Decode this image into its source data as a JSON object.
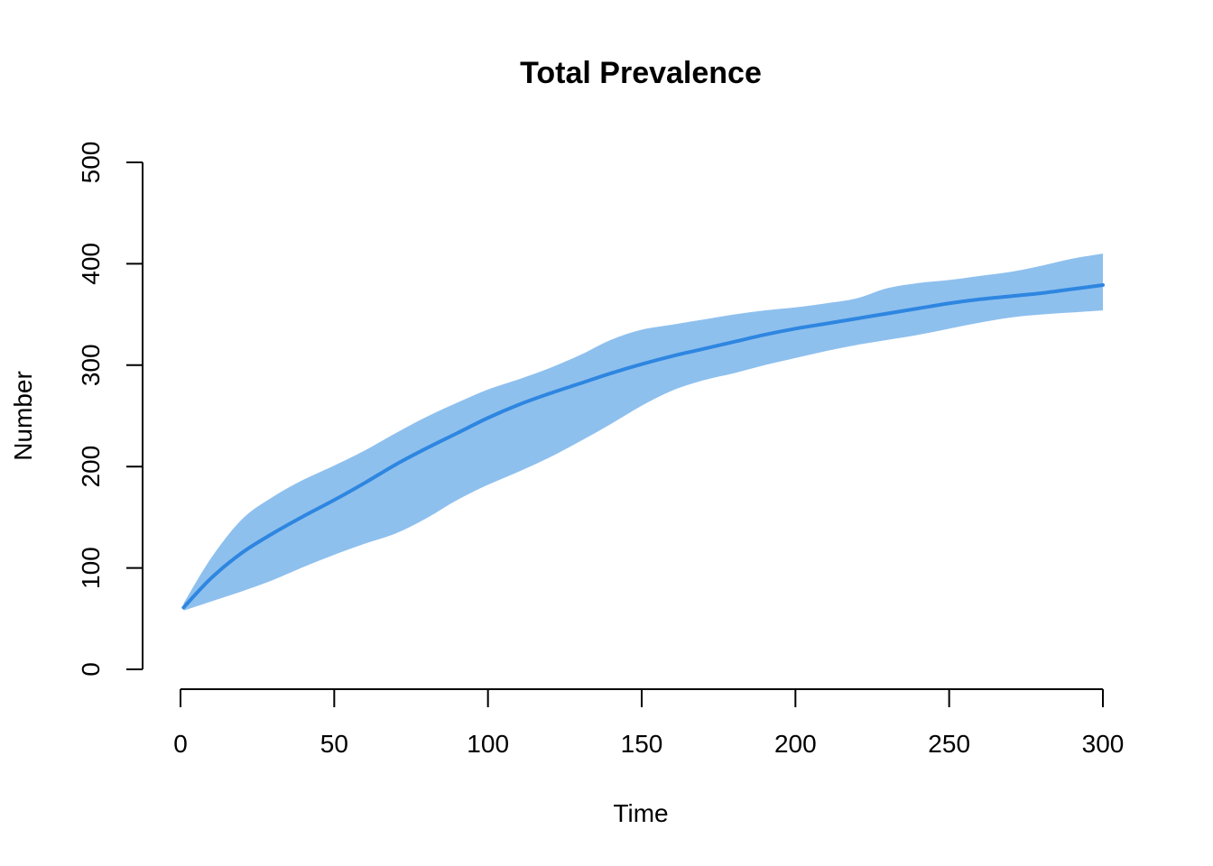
{
  "chart_data": {
    "type": "area",
    "title": "Total Prevalence",
    "xlabel": "Time",
    "ylabel": "Number",
    "xlim": [
      1,
      300
    ],
    "ylim": [
      0,
      500
    ],
    "x_ticks": [
      0,
      50,
      100,
      150,
      200,
      250,
      300
    ],
    "y_ticks": [
      0,
      100,
      200,
      300,
      400,
      500
    ],
    "grid": false,
    "colors": {
      "line": "#2E86E0",
      "band": "#8EC0EE"
    },
    "x": [
      1,
      10,
      20,
      30,
      40,
      50,
      60,
      70,
      80,
      90,
      100,
      110,
      120,
      130,
      140,
      150,
      160,
      170,
      180,
      190,
      200,
      210,
      220,
      230,
      240,
      250,
      260,
      270,
      280,
      290,
      300
    ],
    "series": [
      {
        "values": [
          61,
          90,
          115,
          134,
          151,
          167,
          184,
          202,
          218,
          233,
          248,
          261,
          272,
          282,
          292,
          301,
          309,
          316,
          323,
          330,
          336,
          341,
          346,
          351,
          356,
          361,
          365,
          368,
          371,
          375,
          379
        ]
      }
    ],
    "band": {
      "upper": [
        65,
        110,
        148,
        170,
        187,
        201,
        216,
        233,
        249,
        263,
        276,
        286,
        297,
        310,
        325,
        335,
        340,
        345,
        350,
        354,
        357,
        361,
        366,
        376,
        381,
        384,
        388,
        392,
        398,
        405,
        410
      ],
      "lower": [
        58,
        67,
        77,
        88,
        101,
        113,
        124,
        134,
        149,
        167,
        182,
        195,
        209,
        225,
        242,
        260,
        275,
        285,
        292,
        300,
        307,
        314,
        320,
        325,
        330,
        336,
        342,
        347,
        350,
        352,
        354
      ]
    }
  }
}
